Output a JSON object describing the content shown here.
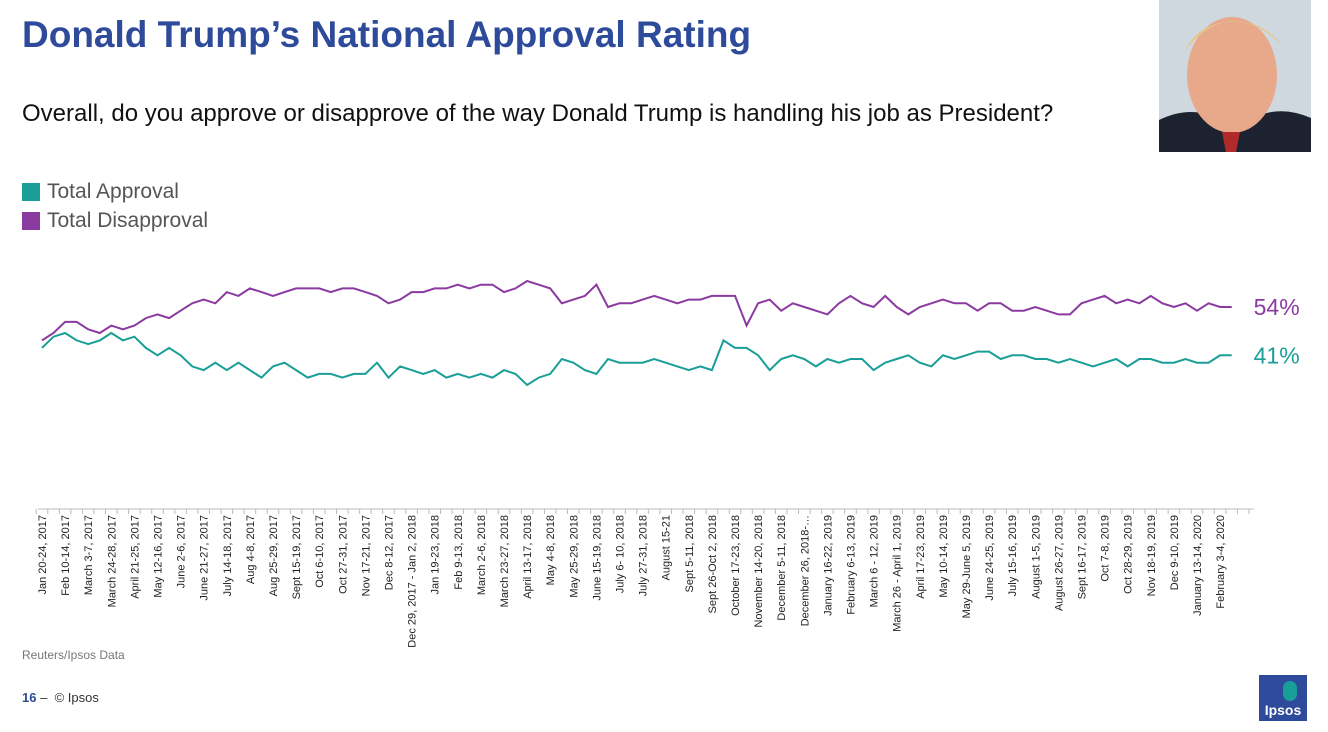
{
  "header": {
    "title": "Donald Trump’s National Approval Rating",
    "question": "Overall, do you approve or disapprove of the way Donald Trump is handling his job as President?"
  },
  "chart_data": {
    "type": "line",
    "categories": [
      "Jan 20-24, 2017",
      null,
      "Feb 10-14, 2017",
      null,
      "March 3-7, 2017",
      null,
      "March 24-28, 2017",
      null,
      "April 21-25, 2017",
      null,
      "May 12-16, 2017",
      null,
      "June 2-6, 2017",
      null,
      "June 21-27, 2017",
      null,
      "July 14-18, 2017",
      null,
      "Aug 4-8, 2017",
      null,
      "Aug 25-29, 2017",
      null,
      "Sept 15-19, 2017",
      null,
      "Oct 6-10, 2017",
      null,
      "Oct 27-31, 2017",
      null,
      "Nov 17-21, 2017",
      null,
      "Dec 8-12, 2017",
      null,
      "Dec 29, 2017 - Jan 2, 2018",
      null,
      "Jan 19-23, 2018",
      null,
      "Feb 9-13, 2018",
      null,
      "March 2-6, 2018",
      null,
      "March 23-27, 2018",
      null,
      "April 13-17, 2018",
      null,
      "May 4-8, 2018",
      null,
      "May 25-29, 2018",
      null,
      "June 15-19, 2018",
      null,
      "July 6- 10, 2018",
      null,
      "July 27-31, 2018",
      null,
      "August 15-21",
      null,
      "Sept 5-11, 2018",
      null,
      "Sept 26-Oct 2, 2018",
      null,
      "October 17-23, 2018",
      null,
      "November 14-20, 2018",
      null,
      "December 5-11, 2018",
      null,
      "December 26, 2018-…",
      null,
      "January 16-22, 2019",
      null,
      "February 6-13, 2019",
      null,
      "March 6 - 12, 2019",
      null,
      "March 26 - April 1, 2019",
      null,
      "April 17-23, 2019",
      null,
      "May 10-14, 2019",
      null,
      "May 29-June 5, 2019",
      null,
      "June 24-25, 2019",
      null,
      "July 15-16, 2019",
      null,
      "August 1-5, 2019",
      null,
      "August 26-27, 2019",
      null,
      "Sept 16-17, 2019",
      null,
      "Oct 7-8, 2019",
      null,
      "Oct 28-29, 2019",
      null,
      "Nov 18-19, 2019",
      null,
      "Dec 9-10, 2019",
      null,
      "January 13-14, 2020",
      null,
      "February 3-4, 2020",
      null
    ],
    "series": [
      {
        "name": "Total Approval",
        "color": "#1a9e98",
        "values": [
          43,
          46,
          47,
          45,
          44,
          45,
          47,
          45,
          46,
          43,
          41,
          43,
          41,
          38,
          37,
          39,
          37,
          39,
          37,
          35,
          38,
          39,
          37,
          35,
          36,
          36,
          35,
          36,
          36,
          39,
          35,
          38,
          37,
          36,
          37,
          35,
          36,
          35,
          36,
          35,
          37,
          36,
          33,
          35,
          36,
          40,
          39,
          37,
          36,
          40,
          39,
          39,
          39,
          40,
          39,
          38,
          37,
          38,
          37,
          45,
          43,
          43,
          41,
          37,
          40,
          41,
          40,
          38,
          40,
          39,
          40,
          40,
          37,
          39,
          40,
          41,
          39,
          38,
          41,
          40,
          41,
          42,
          42,
          40,
          41,
          41,
          40,
          40,
          39,
          40,
          39,
          38,
          39,
          40,
          38,
          40,
          40,
          39,
          39,
          40,
          39,
          39,
          41,
          41
        ],
        "value_labels": [
          null,
          null,
          null,
          null,
          null,
          null,
          null,
          null,
          null,
          null,
          null,
          null,
          null,
          null,
          null,
          null,
          null,
          null,
          null,
          null,
          null,
          null,
          null,
          null,
          null,
          null,
          null,
          null,
          null,
          null,
          null,
          null,
          null,
          null,
          null,
          null,
          null,
          null,
          null,
          null,
          null,
          null,
          null,
          null,
          null,
          null,
          null,
          null,
          null,
          null,
          null,
          null,
          null,
          null,
          null,
          null,
          null,
          null,
          null,
          null,
          null,
          null,
          null,
          null,
          null,
          null,
          null,
          null,
          null,
          null,
          null,
          null,
          null,
          null,
          null,
          null,
          null,
          null,
          null,
          null,
          null,
          null,
          null,
          null,
          null,
          null,
          null,
          null,
          null,
          null,
          null,
          null,
          null,
          null,
          null,
          null,
          null,
          null,
          null,
          null,
          null,
          null,
          null,
          "41%"
        ]
      },
      {
        "name": "Total Disapproval",
        "color": "#8b3aa0",
        "values": [
          45,
          47,
          50,
          50,
          48,
          47,
          49,
          48,
          49,
          51,
          52,
          51,
          53,
          55,
          56,
          55,
          58,
          57,
          59,
          58,
          57,
          58,
          59,
          59,
          59,
          58,
          59,
          59,
          58,
          57,
          55,
          56,
          58,
          58,
          59,
          59,
          60,
          59,
          60,
          60,
          58,
          59,
          61,
          60,
          59,
          55,
          56,
          57,
          60,
          54,
          55,
          55,
          56,
          57,
          56,
          55,
          56,
          56,
          57,
          57,
          57,
          49,
          55,
          56,
          53,
          55,
          54,
          53,
          52,
          55,
          57,
          55,
          54,
          57,
          54,
          52,
          54,
          55,
          56,
          55,
          55,
          53,
          55,
          55,
          53,
          53,
          54,
          53,
          52,
          52,
          55,
          56,
          57,
          55,
          56,
          55,
          57,
          55,
          54,
          55,
          53,
          55,
          54,
          54
        ],
        "value_labels": [
          null,
          null,
          null,
          null,
          null,
          null,
          null,
          null,
          null,
          null,
          null,
          null,
          null,
          null,
          null,
          null,
          null,
          null,
          null,
          null,
          null,
          null,
          null,
          null,
          null,
          null,
          null,
          null,
          null,
          null,
          null,
          null,
          null,
          null,
          null,
          null,
          null,
          null,
          null,
          null,
          null,
          null,
          null,
          null,
          null,
          null,
          null,
          null,
          null,
          null,
          null,
          null,
          null,
          null,
          null,
          null,
          null,
          null,
          null,
          null,
          null,
          null,
          null,
          null,
          null,
          null,
          null,
          null,
          null,
          null,
          null,
          null,
          null,
          null,
          null,
          null,
          null,
          null,
          null,
          null,
          null,
          null,
          null,
          null,
          null,
          null,
          null,
          null,
          null,
          null,
          null,
          null,
          null,
          null,
          null,
          null,
          null,
          null,
          null,
          null,
          null,
          null,
          null,
          "54%"
        ]
      }
    ]
  },
  "source": "Reuters/Ipsos Data",
  "footer": {
    "page": "16",
    "separator": "–",
    "copyright": "© Ipsos"
  },
  "logo": "Ipsos"
}
